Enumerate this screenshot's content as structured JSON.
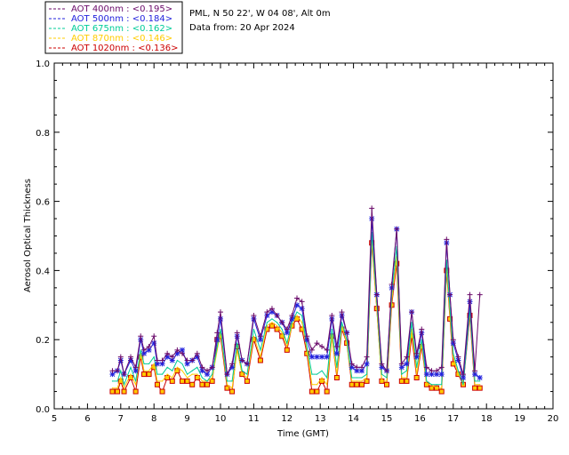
{
  "info": {
    "site": "PML, N 50 22', W 04 08', Alt 0m",
    "date": "Data from: 20 Apr 2024"
  },
  "chart_data": {
    "type": "line",
    "xlabel": "Time (GMT)",
    "ylabel": "Aerosol Optical Thickness",
    "xlim": [
      5,
      20
    ],
    "ylim": [
      0,
      1
    ],
    "xticks": [
      "5",
      "6",
      "7",
      "8",
      "9",
      "10",
      "11",
      "12",
      "13",
      "14",
      "15",
      "16",
      "17",
      "18",
      "19",
      "20"
    ],
    "yticks": [
      "0.0",
      "0.2",
      "0.4",
      "0.6",
      "0.8",
      "1.0"
    ],
    "x": [
      6.75,
      6.9,
      7.0,
      7.1,
      7.3,
      7.45,
      7.6,
      7.7,
      7.85,
      8.0,
      8.1,
      8.25,
      8.4,
      8.55,
      8.7,
      8.85,
      9.0,
      9.15,
      9.3,
      9.45,
      9.6,
      9.75,
      9.9,
      10.0,
      10.2,
      10.35,
      10.5,
      10.65,
      10.8,
      11.0,
      11.2,
      11.4,
      11.55,
      11.7,
      11.85,
      12.0,
      12.15,
      12.3,
      12.45,
      12.6,
      12.75,
      12.9,
      13.05,
      13.2,
      13.35,
      13.5,
      13.65,
      13.8,
      13.95,
      14.1,
      14.25,
      14.4,
      14.55,
      14.7,
      14.85,
      15.0,
      15.15,
      15.3,
      15.45,
      15.6,
      15.75,
      15.9,
      16.05,
      16.2,
      16.35,
      16.5,
      16.65,
      16.8,
      16.9,
      17.0,
      17.15,
      17.3,
      17.5,
      17.65,
      17.8
    ],
    "series": [
      {
        "name": "AOT  400nm : <0.195>",
        "color": "#6a0a6a",
        "marker": "plus",
        "values": [
          0.11,
          0.11,
          0.15,
          0.1,
          0.15,
          0.12,
          0.21,
          0.17,
          0.18,
          0.21,
          0.14,
          0.14,
          0.16,
          0.15,
          0.17,
          0.16,
          0.14,
          0.14,
          0.16,
          0.12,
          0.11,
          0.12,
          0.22,
          0.28,
          0.1,
          0.13,
          0.22,
          0.14,
          0.13,
          0.27,
          0.21,
          0.28,
          0.29,
          0.27,
          0.25,
          0.23,
          0.27,
          0.32,
          0.31,
          0.21,
          0.17,
          0.19,
          0.18,
          0.17,
          0.27,
          0.18,
          0.28,
          0.22,
          0.13,
          0.12,
          0.12,
          0.15,
          0.58,
          0.33,
          0.13,
          0.11,
          0.36,
          0.52,
          0.13,
          0.15,
          0.28,
          0.16,
          0.23,
          0.12,
          0.11,
          0.11,
          0.12,
          0.49,
          0.33,
          0.2,
          0.15,
          0.1,
          0.33,
          0.11,
          0.33
        ]
      },
      {
        "name": "AOT  500nm : <0.184>",
        "color": "#2222dd",
        "marker": "star",
        "values": [
          0.1,
          0.11,
          0.14,
          0.1,
          0.14,
          0.11,
          0.2,
          0.16,
          0.17,
          0.19,
          0.13,
          0.13,
          0.15,
          0.14,
          0.16,
          0.17,
          0.13,
          0.14,
          0.15,
          0.11,
          0.1,
          0.12,
          0.2,
          0.26,
          0.1,
          0.12,
          0.21,
          0.14,
          0.13,
          0.26,
          0.2,
          0.27,
          0.28,
          0.27,
          0.25,
          0.22,
          0.26,
          0.3,
          0.29,
          0.2,
          0.15,
          0.15,
          0.15,
          0.15,
          0.26,
          0.16,
          0.27,
          0.22,
          0.12,
          0.11,
          0.11,
          0.13,
          0.55,
          0.33,
          0.12,
          0.11,
          0.35,
          0.52,
          0.12,
          0.13,
          0.28,
          0.15,
          0.22,
          0.1,
          0.1,
          0.1,
          0.1,
          0.48,
          0.33,
          0.19,
          0.14,
          0.09,
          0.31,
          0.1,
          0.09
        ]
      },
      {
        "name": "AOT  675nm : <0.162>",
        "color": "#00cc99",
        "marker": "none",
        "values": [
          0.08,
          0.08,
          0.11,
          0.07,
          0.12,
          0.08,
          0.17,
          0.13,
          0.13,
          0.15,
          0.1,
          0.1,
          0.12,
          0.11,
          0.14,
          0.13,
          0.1,
          0.11,
          0.12,
          0.09,
          0.08,
          0.1,
          0.18,
          0.23,
          0.08,
          0.08,
          0.19,
          0.11,
          0.1,
          0.23,
          0.17,
          0.25,
          0.26,
          0.25,
          0.23,
          0.19,
          0.25,
          0.28,
          0.27,
          0.18,
          0.1,
          0.1,
          0.11,
          0.09,
          0.23,
          0.12,
          0.25,
          0.2,
          0.09,
          0.09,
          0.09,
          0.1,
          0.51,
          0.31,
          0.1,
          0.09,
          0.33,
          0.47,
          0.1,
          0.11,
          0.25,
          0.12,
          0.2,
          0.08,
          0.07,
          0.07,
          0.07,
          0.43,
          0.29,
          0.16,
          0.11,
          0.07,
          0.29,
          0.08,
          0.08
        ]
      },
      {
        "name": "AOT  870nm : <0.146>",
        "color": "#ffcc00",
        "marker": "none",
        "values": [
          0.06,
          0.06,
          0.09,
          0.06,
          0.1,
          0.07,
          0.16,
          0.11,
          0.11,
          0.13,
          0.08,
          0.08,
          0.1,
          0.09,
          0.12,
          0.11,
          0.09,
          0.1,
          0.1,
          0.08,
          0.08,
          0.09,
          0.17,
          0.22,
          0.07,
          0.06,
          0.17,
          0.1,
          0.09,
          0.21,
          0.15,
          0.24,
          0.25,
          0.24,
          0.22,
          0.18,
          0.24,
          0.27,
          0.25,
          0.17,
          0.07,
          0.07,
          0.09,
          0.07,
          0.21,
          0.1,
          0.24,
          0.19,
          0.08,
          0.08,
          0.08,
          0.09,
          0.49,
          0.29,
          0.08,
          0.08,
          0.31,
          0.44,
          0.09,
          0.09,
          0.23,
          0.1,
          0.19,
          0.07,
          0.07,
          0.06,
          0.06,
          0.41,
          0.27,
          0.15,
          0.1,
          0.08,
          0.28,
          0.07,
          0.07
        ]
      },
      {
        "name": "AOT 1020nm : <0.136>",
        "color": "#cc0000",
        "marker": "square",
        "values": [
          0.05,
          0.05,
          0.08,
          0.05,
          0.09,
          0.05,
          0.15,
          0.1,
          0.1,
          0.12,
          0.07,
          0.05,
          0.09,
          0.08,
          0.11,
          0.08,
          0.08,
          0.07,
          0.09,
          0.07,
          0.07,
          0.08,
          0.2,
          0.21,
          0.06,
          0.05,
          0.18,
          0.1,
          0.08,
          0.2,
          0.14,
          0.23,
          0.24,
          0.23,
          0.21,
          0.17,
          0.24,
          0.26,
          0.23,
          0.16,
          0.05,
          0.05,
          0.08,
          0.05,
          0.21,
          0.09,
          0.23,
          0.19,
          0.07,
          0.07,
          0.07,
          0.08,
          0.48,
          0.29,
          0.08,
          0.07,
          0.3,
          0.42,
          0.08,
          0.08,
          0.21,
          0.09,
          0.18,
          0.07,
          0.06,
          0.06,
          0.05,
          0.4,
          0.26,
          0.13,
          0.1,
          0.07,
          0.27,
          0.06,
          0.06
        ]
      }
    ]
  }
}
